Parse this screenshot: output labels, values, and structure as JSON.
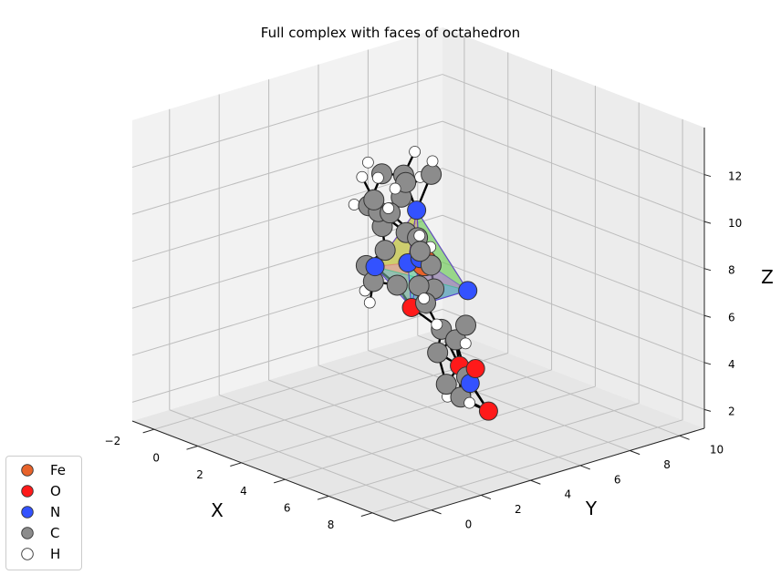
{
  "chart_data": {
    "type": "scatter3d",
    "title": "Full complex with faces of octahedron",
    "xlabel": "X",
    "ylabel": "Y",
    "zlabel": "Z",
    "xticks": [
      "−2",
      "0",
      "2",
      "4",
      "6",
      "8"
    ],
    "yticks": [
      "0",
      "2",
      "4",
      "6",
      "8",
      "10"
    ],
    "zticks": [
      "2",
      "4",
      "6",
      "8",
      "10",
      "12"
    ],
    "legend_position": "lower-left",
    "legend": [
      {
        "label": "Fe",
        "color": "#e8632b"
      },
      {
        "label": "O",
        "color": "#ff1a1a"
      },
      {
        "label": "N",
        "color": "#3352ff"
      },
      {
        "label": "C",
        "color": "#8c8c8c"
      },
      {
        "label": "H",
        "color": "#ffffff"
      }
    ],
    "face_colors": [
      "#20c997",
      "#e040a0",
      "#f0a020",
      "#9acd32",
      "#7b3fe4",
      "#e86a8a",
      "#40c0d0"
    ],
    "atoms": [
      {
        "el": "Fe",
        "x": 3.0,
        "y": 5.0,
        "z": 8.0
      },
      {
        "el": "N",
        "x": 1.5,
        "y": 6.0,
        "z": 9.4
      },
      {
        "el": "N",
        "x": 4.5,
        "y": 3.5,
        "z": 9.2
      },
      {
        "el": "N",
        "x": 1.3,
        "y": 4.5,
        "z": 7.4
      },
      {
        "el": "N",
        "x": 4.3,
        "y": 5.6,
        "z": 7.1
      },
      {
        "el": "N",
        "x": 3.6,
        "y": 3.8,
        "z": 8.6
      },
      {
        "el": "O",
        "x": 3.2,
        "y": 4.3,
        "z": 6.4
      },
      {
        "el": "C",
        "x": 2.2,
        "y": 4.6,
        "z": 6.9
      },
      {
        "el": "C",
        "x": 0.0,
        "y": 6.7,
        "z": 9.2
      },
      {
        "el": "C",
        "x": -0.8,
        "y": 7.5,
        "z": 9.6
      },
      {
        "el": "C",
        "x": -1.8,
        "y": 7.5,
        "z": 9.3
      },
      {
        "el": "C",
        "x": -1.5,
        "y": 6.7,
        "z": 8.3
      },
      {
        "el": "C",
        "x": -0.3,
        "y": 6.2,
        "z": 8.0
      },
      {
        "el": "C",
        "x": 0.4,
        "y": 5.7,
        "z": 7.4
      },
      {
        "el": "C",
        "x": 0.1,
        "y": 5.2,
        "z": 6.8
      },
      {
        "el": "C",
        "x": 1.0,
        "y": 4.7,
        "z": 6.6
      },
      {
        "el": "C",
        "x": 1.0,
        "y": 6.0,
        "z": 10.4
      },
      {
        "el": "C",
        "x": 1.6,
        "y": 6.5,
        "z": 10.8
      },
      {
        "el": "C",
        "x": 5.0,
        "y": 2.5,
        "z": 10.8
      },
      {
        "el": "C",
        "x": 4.3,
        "y": 2.0,
        "z": 11.6
      },
      {
        "el": "C",
        "x": 5.0,
        "y": 1.2,
        "z": 12.6
      },
      {
        "el": "C",
        "x": 6.2,
        "y": 0.8,
        "z": 12.6
      },
      {
        "el": "C",
        "x": 7.0,
        "y": 1.2,
        "z": 11.7
      },
      {
        "el": "C",
        "x": 5.8,
        "y": 2.8,
        "z": 9.6
      },
      {
        "el": "C",
        "x": 7.8,
        "y": 0.6,
        "z": 11.6
      },
      {
        "el": "C",
        "x": 8.2,
        "y": 0.2,
        "z": 10.4
      },
      {
        "el": "C",
        "x": 7.6,
        "y": 1.0,
        "z": 9.2
      },
      {
        "el": "C",
        "x": 6.5,
        "y": 2.3,
        "z": 9.0
      },
      {
        "el": "C",
        "x": 5.8,
        "y": 4.2,
        "z": 6.6
      },
      {
        "el": "C",
        "x": 5.0,
        "y": 4.5,
        "z": 5.6
      },
      {
        "el": "C",
        "x": 4.0,
        "y": 4.8,
        "z": 5.6
      },
      {
        "el": "C",
        "x": 3.6,
        "y": 5.0,
        "z": 4.4
      },
      {
        "el": "C",
        "x": 4.0,
        "y": 5.0,
        "z": 3.2
      },
      {
        "el": "C",
        "x": 5.0,
        "y": 4.7,
        "z": 3.1
      },
      {
        "el": "C",
        "x": 5.5,
        "y": 4.5,
        "z": 4.2
      },
      {
        "el": "N",
        "x": 6.0,
        "y": 4.2,
        "z": 4.2
      },
      {
        "el": "O",
        "x": 6.7,
        "y": 3.8,
        "z": 5.2
      },
      {
        "el": "O",
        "x": 6.5,
        "y": 4.5,
        "z": 3.1
      },
      {
        "el": "O",
        "x": 4.6,
        "y": 5.0,
        "z": 4.2
      },
      {
        "el": "H",
        "x": -1.2,
        "y": 8.3,
        "z": 10.2
      },
      {
        "el": "H",
        "x": -3.0,
        "y": 8.0,
        "z": 9.2
      },
      {
        "el": "H",
        "x": -2.5,
        "y": 7.0,
        "z": 7.9
      },
      {
        "el": "H",
        "x": 0.3,
        "y": 7.2,
        "z": 10.0
      },
      {
        "el": "H",
        "x": 0.5,
        "y": 4.8,
        "z": 6.0
      },
      {
        "el": "H",
        "x": 1.4,
        "y": 4.2,
        "z": 6.0
      },
      {
        "el": "H",
        "x": 2.0,
        "y": 6.2,
        "z": 11.6
      },
      {
        "el": "H",
        "x": 1.2,
        "y": 5.4,
        "z": 10.4
      },
      {
        "el": "H",
        "x": 3.6,
        "y": 2.6,
        "z": 12.6
      },
      {
        "el": "H",
        "x": 4.8,
        "y": 0.9,
        "z": 13.6
      },
      {
        "el": "H",
        "x": 6.8,
        "y": 0.2,
        "z": 13.2
      },
      {
        "el": "H",
        "x": 8.0,
        "y": 0.4,
        "z": 12.4
      },
      {
        "el": "H",
        "x": 9.0,
        "y": -0.3,
        "z": 10.3
      },
      {
        "el": "H",
        "x": 8.0,
        "y": 1.1,
        "z": 8.4
      },
      {
        "el": "H",
        "x": 5.2,
        "y": 3.3,
        "z": 10.0
      },
      {
        "el": "H",
        "x": 3.7,
        "y": 4.6,
        "z": 7.2
      },
      {
        "el": "H",
        "x": 6.7,
        "y": 3.4,
        "z": 6.4
      },
      {
        "el": "H",
        "x": 3.4,
        "y": 5.7,
        "z": 4.6
      },
      {
        "el": "H",
        "x": 3.6,
        "y": 5.4,
        "z": 2.4
      },
      {
        "el": "H",
        "x": 6.2,
        "y": 4.0,
        "z": 3.5
      }
    ]
  }
}
